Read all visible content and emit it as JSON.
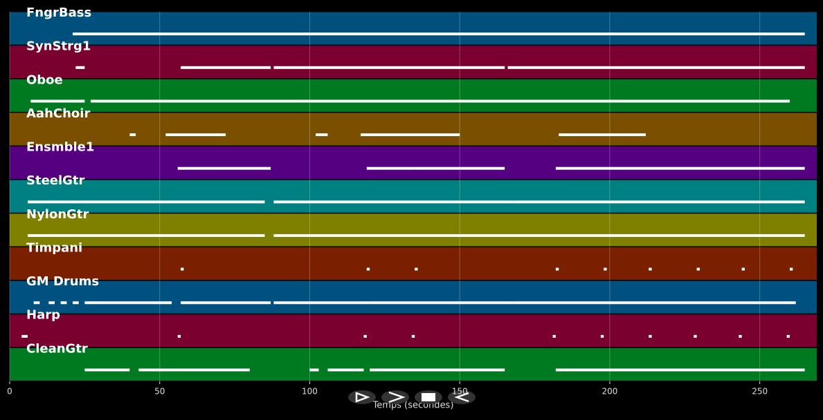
{
  "chart_data": {
    "type": "pianoroll",
    "xlabel": "Temps (secondes)",
    "xlim": [
      0,
      269
    ],
    "xticks": [
      0,
      50,
      100,
      150,
      200,
      250
    ],
    "grid": true,
    "series": [
      {
        "name": "FngrBass",
        "color": "#00507e",
        "segments": [
          [
            21,
            25
          ],
          [
            25,
            265
          ]
        ]
      },
      {
        "name": "SynStrg1",
        "color": "#7a0030",
        "segments": [
          [
            22,
            25
          ],
          [
            57,
            87
          ],
          [
            88,
            165
          ],
          [
            166,
            265
          ]
        ]
      },
      {
        "name": "Oboe",
        "color": "#007a20",
        "segments": [
          [
            7,
            25
          ],
          [
            27,
            260
          ]
        ]
      },
      {
        "name": "AahChoir",
        "color": "#7a5000",
        "segments": [
          [
            40,
            42
          ],
          [
            52,
            72
          ],
          [
            102,
            106
          ],
          [
            117,
            150
          ],
          [
            183,
            212
          ]
        ]
      },
      {
        "name": "Ensmble1",
        "color": "#550080",
        "segments": [
          [
            56,
            72
          ],
          [
            72,
            87
          ],
          [
            119,
            135
          ],
          [
            135,
            150
          ],
          [
            150,
            165
          ],
          [
            182,
            265
          ]
        ]
      },
      {
        "name": "SteelGtr",
        "color": "#008080",
        "segments": [
          [
            6,
            85
          ],
          [
            88,
            168
          ],
          [
            168,
            265
          ]
        ]
      },
      {
        "name": "NylonGtr",
        "color": "#808000",
        "segments": [
          [
            6,
            85
          ],
          [
            88,
            265
          ]
        ]
      },
      {
        "name": "Timpani",
        "color": "#7a2000",
        "segments": [
          [
            57,
            58
          ],
          [
            119,
            120
          ],
          [
            135,
            136
          ],
          [
            182,
            183
          ],
          [
            198,
            199
          ],
          [
            213,
            214
          ],
          [
            229,
            230
          ],
          [
            244,
            245
          ],
          [
            260,
            261
          ]
        ]
      },
      {
        "name": "GM Drums",
        "color": "#005080",
        "segments": [
          [
            8,
            10
          ],
          [
            13,
            15
          ],
          [
            17,
            19
          ],
          [
            21,
            23
          ],
          [
            25,
            54
          ],
          [
            57,
            87
          ],
          [
            88,
            120
          ],
          [
            120,
            168
          ],
          [
            168,
            262
          ]
        ]
      },
      {
        "name": "Harp",
        "color": "#7a0030",
        "segments": [
          [
            4,
            6
          ],
          [
            56,
            57
          ],
          [
            118,
            119
          ],
          [
            134,
            135
          ],
          [
            181,
            182
          ],
          [
            197,
            198
          ],
          [
            213,
            214
          ],
          [
            228,
            229
          ],
          [
            243,
            244
          ],
          [
            259,
            260
          ]
        ]
      },
      {
        "name": "CleanGtr",
        "color": "#007a20",
        "segments": [
          [
            25,
            40
          ],
          [
            43,
            55
          ],
          [
            55,
            80
          ],
          [
            100,
            103
          ],
          [
            106,
            118
          ],
          [
            120,
            165
          ],
          [
            182,
            265
          ]
        ]
      }
    ]
  }
}
